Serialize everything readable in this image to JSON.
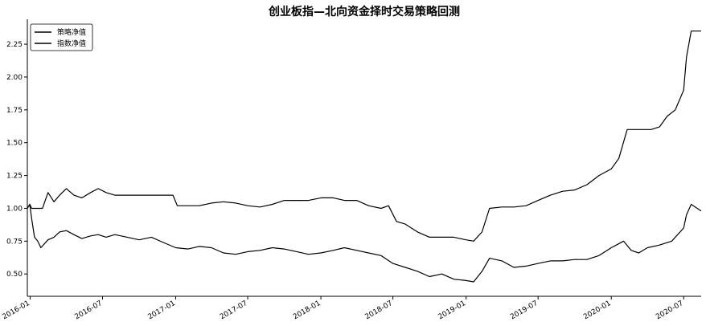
{
  "chart_data": {
    "type": "line",
    "title": "创业板指—北向资金择时交易策略回测",
    "xlabel": "",
    "ylabel": "",
    "x_ticks": [
      "2016-01",
      "2016-07",
      "2017-01",
      "2017-07",
      "2018-01",
      "2018-07",
      "2019-01",
      "2019-07",
      "2020-01",
      "2020-07"
    ],
    "y_ticks": [
      "0.50",
      "0.75",
      "1.00",
      "1.25",
      "1.50",
      "1.75",
      "2.00",
      "2.25"
    ],
    "xlim": [
      "2015-12-25",
      "2020-08-14"
    ],
    "ylim": [
      0.33,
      2.44
    ],
    "legend": {
      "position": "top-left"
    },
    "grid": false,
    "series": [
      {
        "name": "策略净值",
        "color": "#000000",
        "x": [
          "2015-12-25",
          "2015-12-31",
          "2016-01-05",
          "2016-01-12",
          "2016-01-20",
          "2016-02-01",
          "2016-02-15",
          "2016-03-01",
          "2016-03-15",
          "2016-04-01",
          "2016-04-20",
          "2016-05-10",
          "2016-06-01",
          "2016-06-20",
          "2016-07-10",
          "2016-08-01",
          "2016-09-01",
          "2016-10-01",
          "2016-11-01",
          "2016-12-01",
          "2016-12-25",
          "2017-01-05",
          "2017-02-01",
          "2017-03-01",
          "2017-04-01",
          "2017-05-01",
          "2017-06-01",
          "2017-07-01",
          "2017-08-01",
          "2017-09-01",
          "2017-10-01",
          "2017-11-01",
          "2017-12-01",
          "2018-01-01",
          "2018-02-01",
          "2018-03-01",
          "2018-04-01",
          "2018-05-01",
          "2018-06-01",
          "2018-06-20",
          "2018-07-10",
          "2018-08-01",
          "2018-09-01",
          "2018-10-01",
          "2018-11-01",
          "2018-12-01",
          "2019-01-01",
          "2019-01-20",
          "2019-02-10",
          "2019-03-01",
          "2019-04-01",
          "2019-05-01",
          "2019-06-01",
          "2019-07-01",
          "2019-08-01",
          "2019-09-01",
          "2019-10-01",
          "2019-11-01",
          "2019-12-01",
          "2020-01-01",
          "2020-01-20",
          "2020-02-10",
          "2020-03-01",
          "2020-03-20",
          "2020-04-10",
          "2020-05-01",
          "2020-05-20",
          "2020-06-10",
          "2020-07-01",
          "2020-07-08",
          "2020-07-20",
          "2020-08-14"
        ],
        "y": [
          1.0,
          1.03,
          1.0,
          1.0,
          1.0,
          1.0,
          1.12,
          1.05,
          1.1,
          1.15,
          1.1,
          1.08,
          1.12,
          1.15,
          1.12,
          1.1,
          1.1,
          1.1,
          1.1,
          1.1,
          1.1,
          1.02,
          1.02,
          1.02,
          1.04,
          1.05,
          1.04,
          1.02,
          1.01,
          1.03,
          1.06,
          1.06,
          1.06,
          1.08,
          1.08,
          1.06,
          1.06,
          1.02,
          1.0,
          1.02,
          0.9,
          0.88,
          0.82,
          0.78,
          0.78,
          0.78,
          0.76,
          0.75,
          0.82,
          1.0,
          1.01,
          1.01,
          1.02,
          1.06,
          1.1,
          1.13,
          1.14,
          1.18,
          1.25,
          1.3,
          1.38,
          1.6,
          1.6,
          1.6,
          1.6,
          1.62,
          1.7,
          1.75,
          1.9,
          2.15,
          2.35,
          2.35
        ]
      },
      {
        "name": "指数净值",
        "color": "#000000",
        "x": [
          "2015-12-25",
          "2015-12-31",
          "2016-01-05",
          "2016-01-12",
          "2016-01-20",
          "2016-01-28",
          "2016-02-15",
          "2016-03-01",
          "2016-03-15",
          "2016-04-01",
          "2016-04-20",
          "2016-05-10",
          "2016-06-01",
          "2016-06-20",
          "2016-07-10",
          "2016-08-01",
          "2016-09-01",
          "2016-10-01",
          "2016-11-01",
          "2016-12-01",
          "2017-01-01",
          "2017-02-01",
          "2017-03-01",
          "2017-04-01",
          "2017-05-01",
          "2017-06-01",
          "2017-07-01",
          "2017-08-01",
          "2017-09-01",
          "2017-10-01",
          "2017-11-01",
          "2017-12-01",
          "2018-01-01",
          "2018-02-01",
          "2018-03-01",
          "2018-04-01",
          "2018-05-01",
          "2018-06-01",
          "2018-07-01",
          "2018-08-01",
          "2018-09-01",
          "2018-10-01",
          "2018-11-01",
          "2018-12-01",
          "2019-01-01",
          "2019-01-20",
          "2019-02-10",
          "2019-03-01",
          "2019-04-01",
          "2019-05-01",
          "2019-06-01",
          "2019-07-01",
          "2019-08-01",
          "2019-09-01",
          "2019-10-01",
          "2019-11-01",
          "2019-12-01",
          "2020-01-01",
          "2020-02-01",
          "2020-02-20",
          "2020-03-10",
          "2020-04-01",
          "2020-05-01",
          "2020-06-01",
          "2020-07-01",
          "2020-07-08",
          "2020-07-20",
          "2020-08-14"
        ],
        "y": [
          1.0,
          1.03,
          0.92,
          0.78,
          0.75,
          0.7,
          0.76,
          0.78,
          0.82,
          0.83,
          0.8,
          0.77,
          0.79,
          0.8,
          0.78,
          0.8,
          0.78,
          0.76,
          0.78,
          0.74,
          0.7,
          0.69,
          0.71,
          0.7,
          0.66,
          0.65,
          0.67,
          0.68,
          0.7,
          0.69,
          0.67,
          0.65,
          0.66,
          0.68,
          0.7,
          0.68,
          0.66,
          0.64,
          0.58,
          0.55,
          0.52,
          0.48,
          0.5,
          0.46,
          0.45,
          0.44,
          0.52,
          0.62,
          0.6,
          0.55,
          0.56,
          0.58,
          0.6,
          0.6,
          0.61,
          0.61,
          0.64,
          0.7,
          0.75,
          0.68,
          0.66,
          0.7,
          0.72,
          0.75,
          0.85,
          0.95,
          1.03,
          0.98
        ]
      }
    ]
  }
}
